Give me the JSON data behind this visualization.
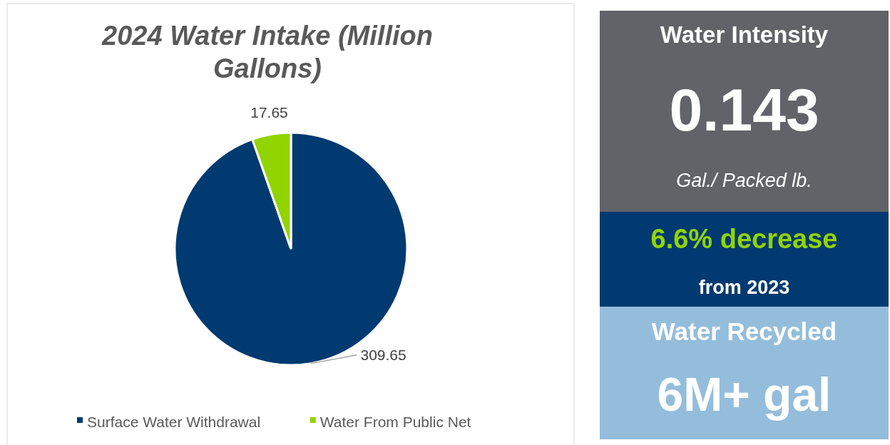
{
  "chart_data": [
    {
      "type": "pie",
      "title": "2024 Water Intake (Million Gallons)",
      "categories": [
        "Surface Water Withdrawal",
        "Water From Public Net"
      ],
      "values": [
        309.65,
        17.65
      ],
      "colors": [
        "#003a70",
        "#92d400"
      ],
      "data_labels": true,
      "legend": "bottom"
    },
    {
      "type": "other",
      "annotations": [
        "Water Intensity",
        "0.143",
        "Gal./ Packed lb.",
        "6.6% decrease",
        "from 2023",
        "Water Recycled",
        "6M+ gal"
      ],
      "colors": [
        "#616368",
        "#003a70",
        "#94bddc"
      ]
    }
  ]
}
